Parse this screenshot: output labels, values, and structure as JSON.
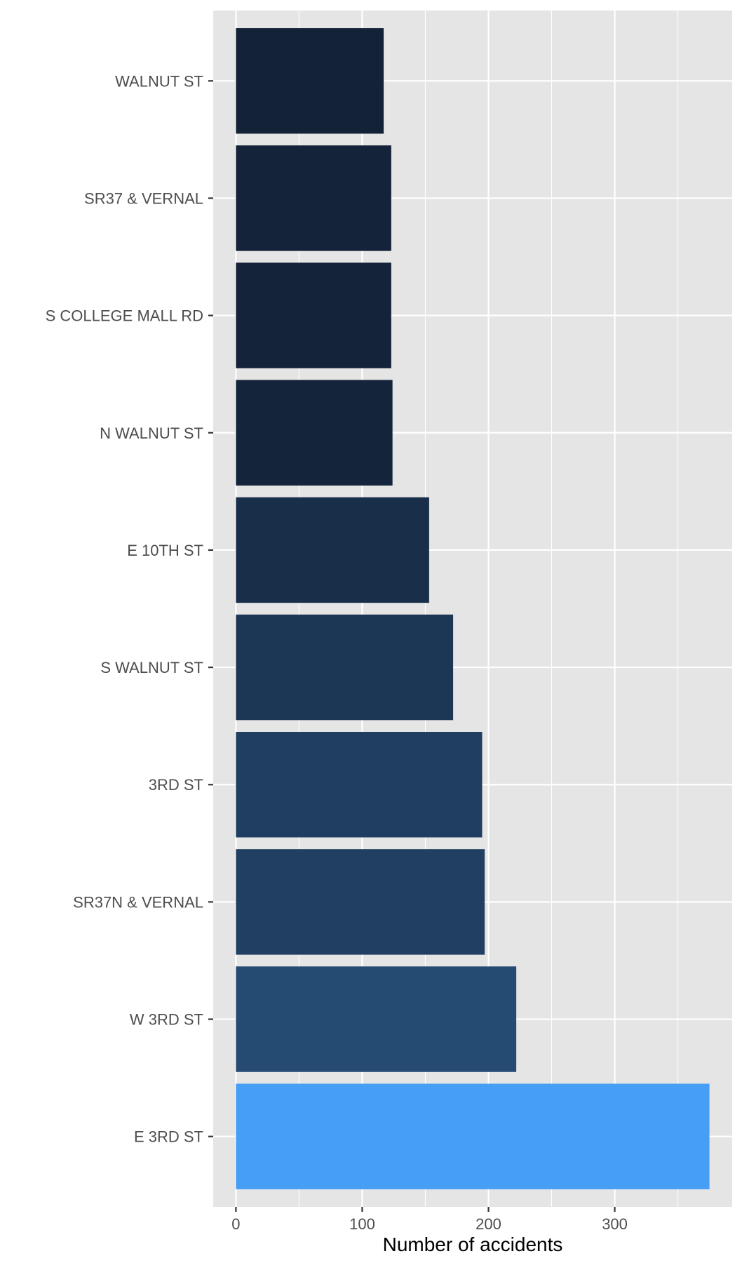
{
  "chart_data": {
    "type": "bar",
    "orientation": "horizontal",
    "categories": [
      "E 3RD ST",
      "W 3RD ST",
      "SR37N & VERNAL",
      "3RD ST",
      "S WALNUT ST",
      "E 10TH ST",
      "N WALNUT ST",
      "S COLLEGE MALL RD",
      "SR37 & VERNAL",
      "WALNUT ST"
    ],
    "values": [
      375,
      222,
      197,
      195,
      172,
      153,
      124,
      123,
      123,
      117
    ],
    "colors": [
      "#469ef5",
      "#254b73",
      "#203f62",
      "#203e61",
      "#1c3656",
      "#192e49",
      "#14243a",
      "#14233a",
      "#14233a",
      "#132236"
    ],
    "title": "",
    "xlabel": "Number of accidents",
    "ylabel": "",
    "xlim": [
      -18,
      393
    ],
    "xticks": [
      0,
      100,
      200,
      300
    ],
    "xtick_labels": [
      "0",
      "100",
      "200",
      "300"
    ],
    "grid": true,
    "legend": "none",
    "panel_background": "#e5e5e5",
    "grid_color": "#ffffff"
  }
}
